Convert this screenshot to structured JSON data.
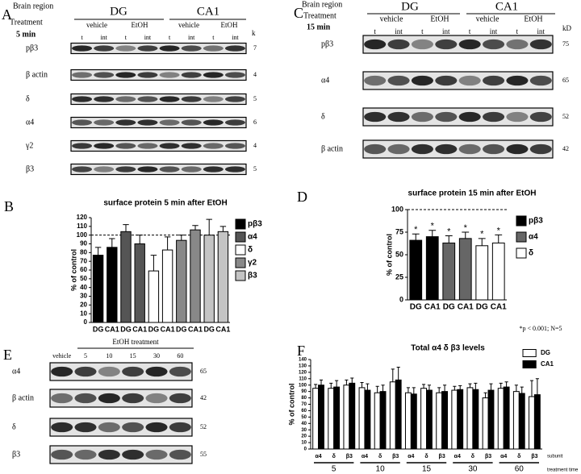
{
  "panel_A": {
    "letter": "A",
    "brain_region": "Brain region",
    "treatment": "Treatment",
    "time": "5 min",
    "regions": [
      "DG",
      "CA1"
    ],
    "conditions": [
      "vehicle",
      "EtOH",
      "vehicle",
      "EtOH"
    ],
    "lanes": [
      "t",
      "int",
      "t",
      "int",
      "t",
      "int",
      "t",
      "int"
    ],
    "unit": "k",
    "rows": [
      {
        "protein": "pβ3",
        "kd": 7
      },
      {
        "protein": "β actin",
        "kd": 4
      },
      {
        "protein": "δ",
        "kd": 5
      },
      {
        "protein": "α4",
        "kd": 6
      },
      {
        "protein": "γ2",
        "kd": 4
      },
      {
        "protein": "β3",
        "kd": 5
      }
    ]
  },
  "panel_C": {
    "letter": "C",
    "brain_region": "Brain region",
    "treatment": "Treatment",
    "time": "15 min",
    "regions": [
      "DG",
      "CA1"
    ],
    "conditions": [
      "vehicle",
      "EtOH",
      "vehicle",
      "EtOH"
    ],
    "lanes": [
      "t",
      "int",
      "t",
      "int",
      "t",
      "int",
      "t",
      "int"
    ],
    "unit": "kD",
    "rows": [
      {
        "protein": "pβ3",
        "kd": 75
      },
      {
        "protein": "α4",
        "kd": 65
      },
      {
        "protein": "δ",
        "kd": 52
      },
      {
        "protein": "β actin",
        "kd": 42
      }
    ]
  },
  "panel_E": {
    "letter": "E",
    "treatment": "EtOH treatment",
    "lanes": [
      "vehicle",
      "5",
      "10",
      "15",
      "30",
      "60"
    ],
    "rows": [
      {
        "protein": "α4",
        "kd": 65
      },
      {
        "protein": "β actin",
        "kd": 42
      },
      {
        "protein": "δ",
        "kd": 52
      },
      {
        "protein": "β3",
        "kd": 55
      }
    ]
  },
  "chart_data": [
    {
      "type": "bar",
      "panel": "B",
      "title": "surface protein 5 min after EtOH",
      "y_label": "% of control",
      "categories": [
        "DG",
        "CA1",
        "DG",
        "CA1",
        "DG",
        "CA1",
        "DG",
        "CA1",
        "DG",
        "CA1"
      ],
      "series": [
        {
          "name": "pβ3",
          "color": "#000000",
          "values": [
            77,
            86,
            null,
            null,
            null,
            null,
            null,
            null,
            null,
            null
          ],
          "errors": [
            9,
            10,
            null,
            null,
            null,
            null,
            null,
            null,
            null,
            null
          ]
        },
        {
          "name": "α4",
          "color": "#555555",
          "values": [
            null,
            null,
            104,
            90,
            null,
            null,
            null,
            null,
            null,
            null
          ],
          "errors": [
            null,
            null,
            8,
            10,
            null,
            null,
            null,
            null,
            null,
            null
          ]
        },
        {
          "name": "δ",
          "color": "#ffffff",
          "values": [
            null,
            null,
            null,
            null,
            59,
            83,
            null,
            null,
            null,
            null
          ],
          "errors": [
            null,
            null,
            null,
            null,
            18,
            15,
            null,
            null,
            null,
            null
          ]
        },
        {
          "name": "γ2",
          "color": "#888888",
          "values": [
            null,
            null,
            null,
            null,
            null,
            null,
            94,
            106,
            null,
            null
          ],
          "errors": [
            null,
            null,
            null,
            null,
            null,
            null,
            6,
            5,
            null,
            null
          ]
        },
        {
          "name": "β3",
          "color": "#c4c4c4",
          "values": [
            null,
            null,
            null,
            null,
            null,
            null,
            null,
            null,
            100,
            104
          ],
          "errors": [
            null,
            null,
            null,
            null,
            null,
            null,
            null,
            null,
            18,
            6
          ]
        }
      ],
      "ylim": [
        0,
        120
      ],
      "yticks": [
        0,
        10,
        20,
        30,
        40,
        50,
        60,
        70,
        80,
        90,
        100,
        110,
        120
      ],
      "refline": 100
    },
    {
      "type": "bar",
      "panel": "D",
      "title": "surface protein 15 min after EtOH",
      "y_label": "% of control",
      "categories": [
        "DG",
        "CA1",
        "DG",
        "CA1",
        "DG",
        "CA1"
      ],
      "series": [
        {
          "name": "pβ3",
          "color": "#000000",
          "values": [
            66,
            70,
            null,
            null,
            null,
            null
          ],
          "errors": [
            7,
            7,
            null,
            null,
            null,
            null
          ]
        },
        {
          "name": "α4",
          "color": "#666666",
          "values": [
            null,
            null,
            63,
            68,
            null,
            null
          ],
          "errors": [
            null,
            null,
            8,
            7,
            null,
            null
          ]
        },
        {
          "name": "δ",
          "color": "#ffffff",
          "values": [
            null,
            null,
            null,
            null,
            60,
            63
          ],
          "errors": [
            null,
            null,
            null,
            null,
            8,
            9
          ]
        }
      ],
      "bar_annotations": [
        "*",
        "*",
        "*",
        "*",
        "*",
        "*"
      ],
      "ylim": [
        0,
        100
      ],
      "yticks": [
        0,
        25,
        50,
        75,
        100
      ],
      "refline": 100,
      "note": "*p < 0.001; N=5"
    },
    {
      "type": "bar",
      "panel": "F",
      "title": "Total α4 δ β3 levels",
      "y_label": "% of control",
      "categories": [
        "α4",
        "δ",
        "β3",
        "α4",
        "δ",
        "β3",
        "α4",
        "δ",
        "β3",
        "α4",
        "δ",
        "β3",
        "α4",
        "δ",
        "β3"
      ],
      "groups": [
        "5",
        "10",
        "15",
        "30",
        "60"
      ],
      "category_axis_label": "subunit",
      "group_axis_label": "treatment time",
      "series": [
        {
          "name": "DG",
          "color": "#ffffff",
          "values": [
            95,
            95,
            100,
            96,
            88,
            105,
            88,
            95,
            88,
            92,
            96,
            80,
            95,
            90,
            82
          ],
          "errors": [
            6,
            8,
            8,
            8,
            10,
            20,
            8,
            6,
            8,
            6,
            6,
            8,
            8,
            10,
            25
          ]
        },
        {
          "name": "CA1",
          "color": "#000000",
          "values": [
            100,
            97,
            103,
            92,
            90,
            108,
            86,
            92,
            90,
            93,
            93,
            92,
            97,
            87,
            85
          ],
          "errors": [
            8,
            10,
            8,
            10,
            10,
            20,
            10,
            8,
            10,
            6,
            10,
            10,
            8,
            10,
            25
          ]
        }
      ],
      "ylim": [
        0,
        140
      ],
      "yticks": [
        0,
        10,
        20,
        30,
        40,
        50,
        60,
        70,
        80,
        90,
        100,
        110,
        120,
        130,
        140
      ]
    }
  ]
}
